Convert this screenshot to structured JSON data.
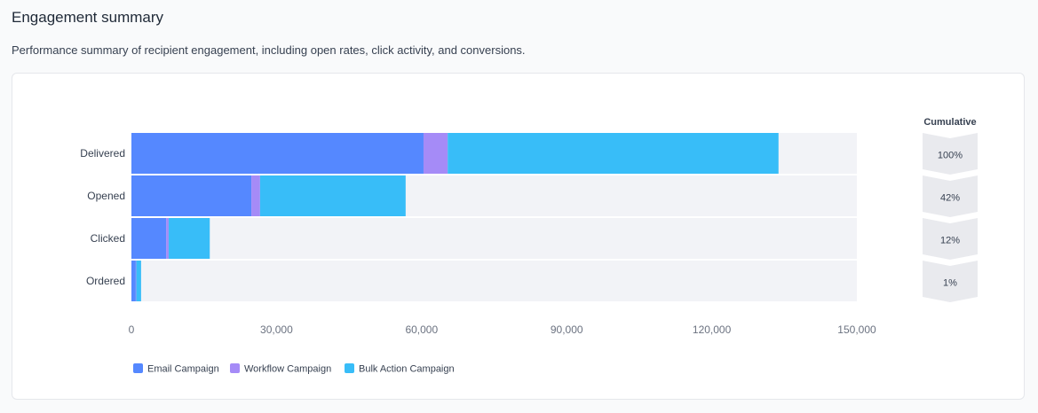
{
  "header": {
    "title": "Engagement summary",
    "description": "Performance summary of recipient engagement, including open rates, click activity, and conversions."
  },
  "chart_data": {
    "type": "bar",
    "orientation": "horizontal",
    "stacked": true,
    "categories": [
      "Delivered",
      "Opened",
      "Clicked",
      "Ordered"
    ],
    "series": [
      {
        "name": "Email Campaign",
        "color": "#5588ff",
        "values": [
          60400,
          24800,
          7200,
          900
        ]
      },
      {
        "name": "Workflow Campaign",
        "color": "#a58bf7",
        "values": [
          5000,
          1800,
          500,
          100
        ]
      },
      {
        "name": "Bulk Action Campaign",
        "color": "#38bdf8",
        "values": [
          68400,
          30100,
          8500,
          1000
        ]
      }
    ],
    "xlim": [
      0,
      150000
    ],
    "xticks": [
      0,
      30000,
      60000,
      90000,
      120000,
      150000
    ],
    "xtick_labels": [
      "0",
      "30,000",
      "60,000",
      "90,000",
      "120,000",
      "150,000"
    ],
    "legend": "bottom-left",
    "cumulative": {
      "label": "Cumulative",
      "values": [
        "100%",
        "42%",
        "12%",
        "1%"
      ]
    }
  }
}
